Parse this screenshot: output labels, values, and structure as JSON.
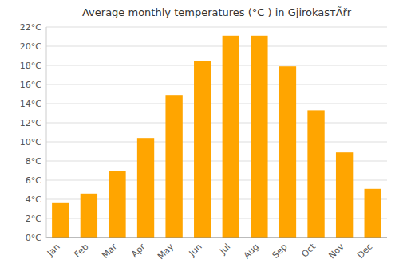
{
  "chart_data": {
    "type": "bar",
    "title": "Average monthly temperatures (°C ) in GjirokasтÃřr",
    "categories": [
      "Jan",
      "Feb",
      "Mar",
      "Apr",
      "May",
      "Jun",
      "Jul",
      "Aug",
      "Sep",
      "Oct",
      "Nov",
      "Dec"
    ],
    "values": [
      3.6,
      4.6,
      7.0,
      10.4,
      14.9,
      18.5,
      21.1,
      21.1,
      17.9,
      13.3,
      8.9,
      5.1
    ],
    "color": "#FFA500",
    "ylim": [
      0,
      22
    ],
    "yticks": [
      {
        "value": 0,
        "label": "0°C"
      },
      {
        "value": 2,
        "label": "2°C"
      },
      {
        "value": 4,
        "label": "4°C"
      },
      {
        "value": 6,
        "label": "6°C"
      },
      {
        "value": 8,
        "label": "8°C"
      },
      {
        "value": 10,
        "label": "10°C"
      },
      {
        "value": 12,
        "label": "12°C"
      },
      {
        "value": 14,
        "label": "14°C"
      },
      {
        "value": 16,
        "label": "16°C"
      },
      {
        "value": 18,
        "label": "18°C"
      },
      {
        "value": 20,
        "label": "20°C"
      },
      {
        "value": 22,
        "label": "22°C"
      }
    ],
    "grid": true
  }
}
